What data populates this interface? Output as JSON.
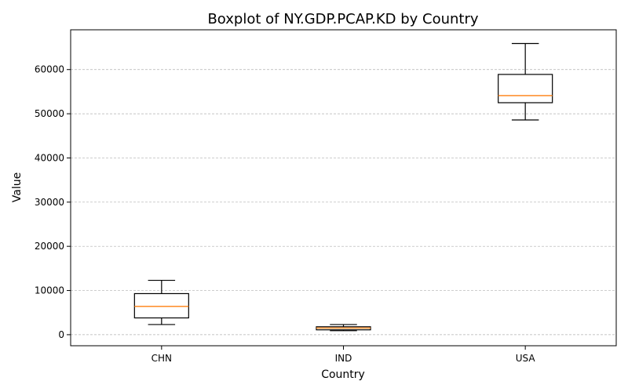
{
  "chart_data": {
    "type": "boxplot",
    "title": "Boxplot of NY.GDP.PCAP.KD by Country",
    "xlabel": "Country",
    "ylabel": "Value",
    "ylim": [
      -2500,
      69000
    ],
    "yticks": [
      0,
      10000,
      20000,
      30000,
      40000,
      50000,
      60000
    ],
    "grid": "y",
    "median_color": "#ff7f0e",
    "series": [
      {
        "category": "CHN",
        "whisker_low": 2300,
        "q1": 3800,
        "median": 6400,
        "q3": 9300,
        "whisker_high": 12300
      },
      {
        "category": "IND",
        "whisker_low": 900,
        "q1": 1100,
        "median": 1500,
        "q3": 1800,
        "whisker_high": 2300
      },
      {
        "category": "USA",
        "whisker_low": 48600,
        "q1": 52500,
        "median": 54100,
        "q3": 58900,
        "whisker_high": 65900
      }
    ]
  }
}
